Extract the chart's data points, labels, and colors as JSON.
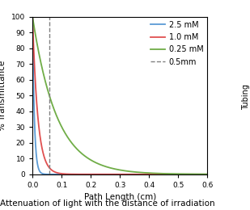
{
  "title": "Attenuation of light with the distance of irradiation",
  "xlabel": "Path Length (cm)",
  "ylabel": "% Transmittance",
  "xlim": [
    0,
    0.6
  ],
  "ylim": [
    0,
    100
  ],
  "xticks": [
    0,
    0.1,
    0.2,
    0.3,
    0.4,
    0.5,
    0.6
  ],
  "yticks": [
    0,
    10,
    20,
    30,
    40,
    50,
    60,
    70,
    80,
    90,
    100
  ],
  "series": [
    {
      "label": "2.5 mM",
      "color": "#5B9BD5",
      "absorption_coeff": 160
    },
    {
      "label": "1.0 mM",
      "color": "#E05050",
      "absorption_coeff": 55
    },
    {
      "label": "0.25 mM",
      "color": "#70AD47",
      "absorption_coeff": 12
    }
  ],
  "dashed_line_x": 0.057,
  "dashed_line_color": "#808080",
  "dashed_label": "0.5mm",
  "tubing_label": "Tubing",
  "background_color": "#FFFFFF",
  "legend_fontsize": 7.0,
  "axis_fontsize": 7.5,
  "tick_fontsize": 6.5,
  "title_fontsize": 7.5
}
